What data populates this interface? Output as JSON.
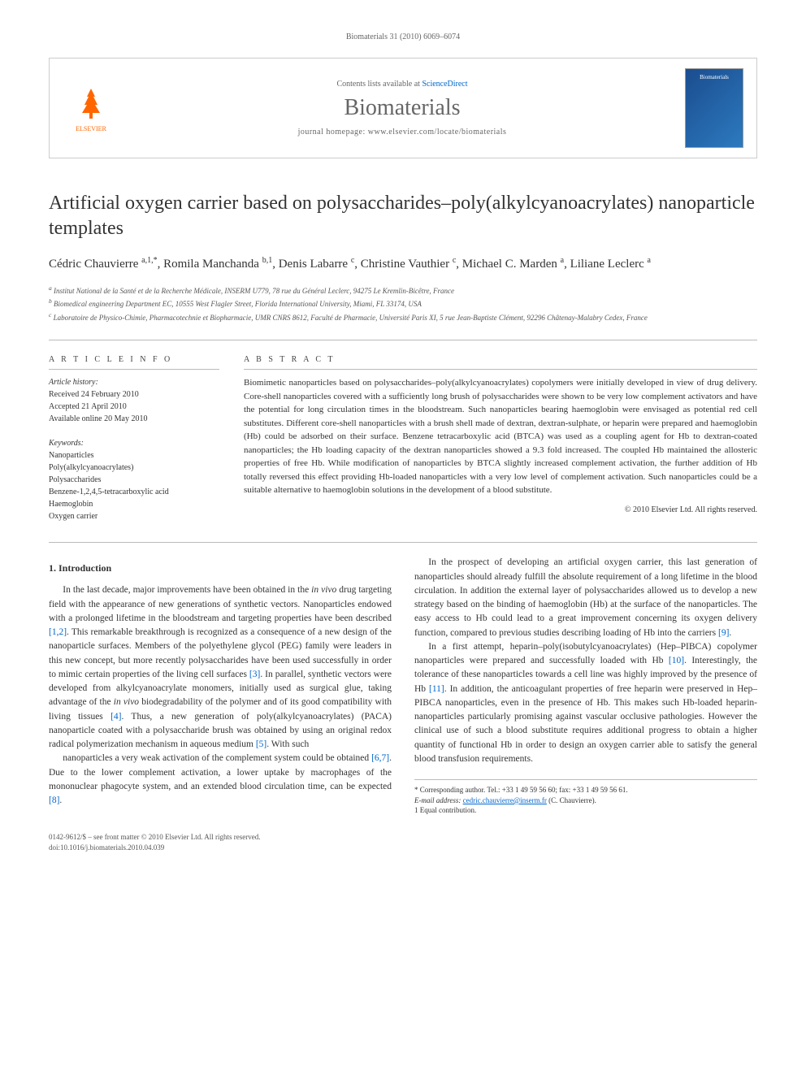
{
  "running_head": "Biomaterials 31 (2010) 6069–6074",
  "journal_box": {
    "contents_prefix": "Contents lists available at ",
    "contents_link": "ScienceDirect",
    "journal_name": "Biomaterials",
    "homepage_prefix": "journal homepage: ",
    "homepage_url": "www.elsevier.com/locate/biomaterials",
    "publisher": "ELSEVIER",
    "cover_label": "Biomaterials"
  },
  "title": "Artificial oxygen carrier based on polysaccharides–poly(alkylcyanoacrylates) nanoparticle templates",
  "authors_html": "Cédric Chauvierre <sup>a,1,*</sup>, Romila Manchanda <sup>b,1</sup>, Denis Labarre <sup>c</sup>, Christine Vauthier <sup>c</sup>, Michael C. Marden <sup>a</sup>, Liliane Leclerc <sup>a</sup>",
  "affiliations": [
    "a Institut National de la Santé et de la Recherche Médicale, INSERM U779, 78 rue du Général Leclerc, 94275 Le Kremlin-Bicêtre, France",
    "b Biomedical engineering Department EC, 10555 West Flagler Street, Florida International University, Miami, FL 33174, USA",
    "c Laboratoire de Physico-Chimie, Pharmacotechnie et Biopharmacie, UMR CNRS 8612, Faculté de Pharmacie, Université Paris XI, 5 rue Jean-Baptiste Clément, 92296 Châtenay-Malabry Cedex, France"
  ],
  "article_info": {
    "head": "A R T I C L E   I N F O",
    "history_label": "Article history:",
    "history": [
      "Received 24 February 2010",
      "Accepted 21 April 2010",
      "Available online 20 May 2010"
    ],
    "keywords_label": "Keywords:",
    "keywords": [
      "Nanoparticles",
      "Poly(alkylcyanoacrylates)",
      "Polysaccharides",
      "Benzene-1,2,4,5-tetracarboxylic acid",
      "Haemoglobin",
      "Oxygen carrier"
    ]
  },
  "abstract": {
    "head": "A B S T R A C T",
    "text": "Biomimetic nanoparticles based on polysaccharides–poly(alkylcyanoacrylates) copolymers were initially developed in view of drug delivery. Core-shell nanoparticles covered with a sufficiently long brush of polysaccharides were shown to be very low complement activators and have the potential for long circulation times in the bloodstream. Such nanoparticles bearing haemoglobin were envisaged as potential red cell substitutes. Different core-shell nanoparticles with a brush shell made of dextran, dextran-sulphate, or heparin were prepared and haemoglobin (Hb) could be adsorbed on their surface. Benzene tetracarboxylic acid (BTCA) was used as a coupling agent for Hb to dextran-coated nanoparticles; the Hb loading capacity of the dextran nanoparticles showed a 9.3 fold increased. The coupled Hb maintained the allosteric properties of free Hb. While modification of nanoparticles by BTCA slightly increased complement activation, the further addition of Hb totally reversed this effect providing Hb-loaded nanoparticles with a very low level of complement activation. Such nanoparticles could be a suitable alternative to haemoglobin solutions in the development of a blood substitute.",
    "copyright": "© 2010 Elsevier Ltd. All rights reserved."
  },
  "section1": {
    "head": "1. Introduction",
    "paragraphs": [
      "In the last decade, major improvements have been obtained in the in vivo drug targeting field with the appearance of new generations of synthetic vectors. Nanoparticles endowed with a prolonged lifetime in the bloodstream and targeting properties have been described [1,2]. This remarkable breakthrough is recognized as a consequence of a new design of the nanoparticle surfaces. Members of the polyethylene glycol (PEG) family were leaders in this new concept, but more recently polysaccharides have been used successfully in order to mimic certain properties of the living cell surfaces [3]. In parallel, synthetic vectors were developed from alkylcyanoacrylate monomers, initially used as surgical glue, taking advantage of the in vivo biodegradability of the polymer and of its good compatibility with living tissues [4]. Thus, a new generation of poly(alkylcyanoacrylates) (PACA) nanoparticle coated with a polysaccharide brush was obtained by using an original redox radical polymerization mechanism in aqueous medium [5]. With such",
      "nanoparticles a very weak activation of the complement system could be obtained [6,7]. Due to the lower complement activation, a lower uptake by macrophages of the mononuclear phagocyte system, and an extended blood circulation time, can be expected [8].",
      "In the prospect of developing an artificial oxygen carrier, this last generation of nanoparticles should already fulfill the absolute requirement of a long lifetime in the blood circulation. In addition the external layer of polysaccharides allowed us to develop a new strategy based on the binding of haemoglobin (Hb) at the surface of the nanoparticles. The easy access to Hb could lead to a great improvement concerning its oxygen delivery function, compared to previous studies describing loading of Hb into the carriers [9].",
      "In a first attempt, heparin–poly(isobutylcyanoacrylates) (Hep–PIBCA) copolymer nanoparticles were prepared and successfully loaded with Hb [10]. Interestingly, the tolerance of these nanoparticles towards a cell line was highly improved by the presence of Hb [11]. In addition, the anticoagulant properties of free heparin were preserved in Hep–PIBCA nanoparticles, even in the presence of Hb. This makes such Hb-loaded heparin-nanoparticles particularly promising against vascular occlusive pathologies. However the clinical use of such a blood substitute requires additional progress to obtain a higher quantity of functional Hb in order to design an oxygen carrier able to satisfy the general blood transfusion requirements."
    ]
  },
  "footnotes": {
    "corr": "* Corresponding author. Tel.: +33 1 49 59 56 60; fax: +33 1 49 59 56 61.",
    "email_label": "E-mail address:",
    "email": "cedric.chauvierre@inserm.fr",
    "email_suffix": "(C. Chauvierre).",
    "equal": "1 Equal contribution."
  },
  "bottom": {
    "issn": "0142-9612/$ – see front matter © 2010 Elsevier Ltd. All rights reserved.",
    "doi": "doi:10.1016/j.biomaterials.2010.04.039"
  },
  "colors": {
    "link": "#0066cc",
    "elsevier_orange": "#ff6600",
    "cover_bg1": "#1a4d8f",
    "cover_bg2": "#2d7abf",
    "rule": "#bbbbbb",
    "muted": "#666666"
  }
}
